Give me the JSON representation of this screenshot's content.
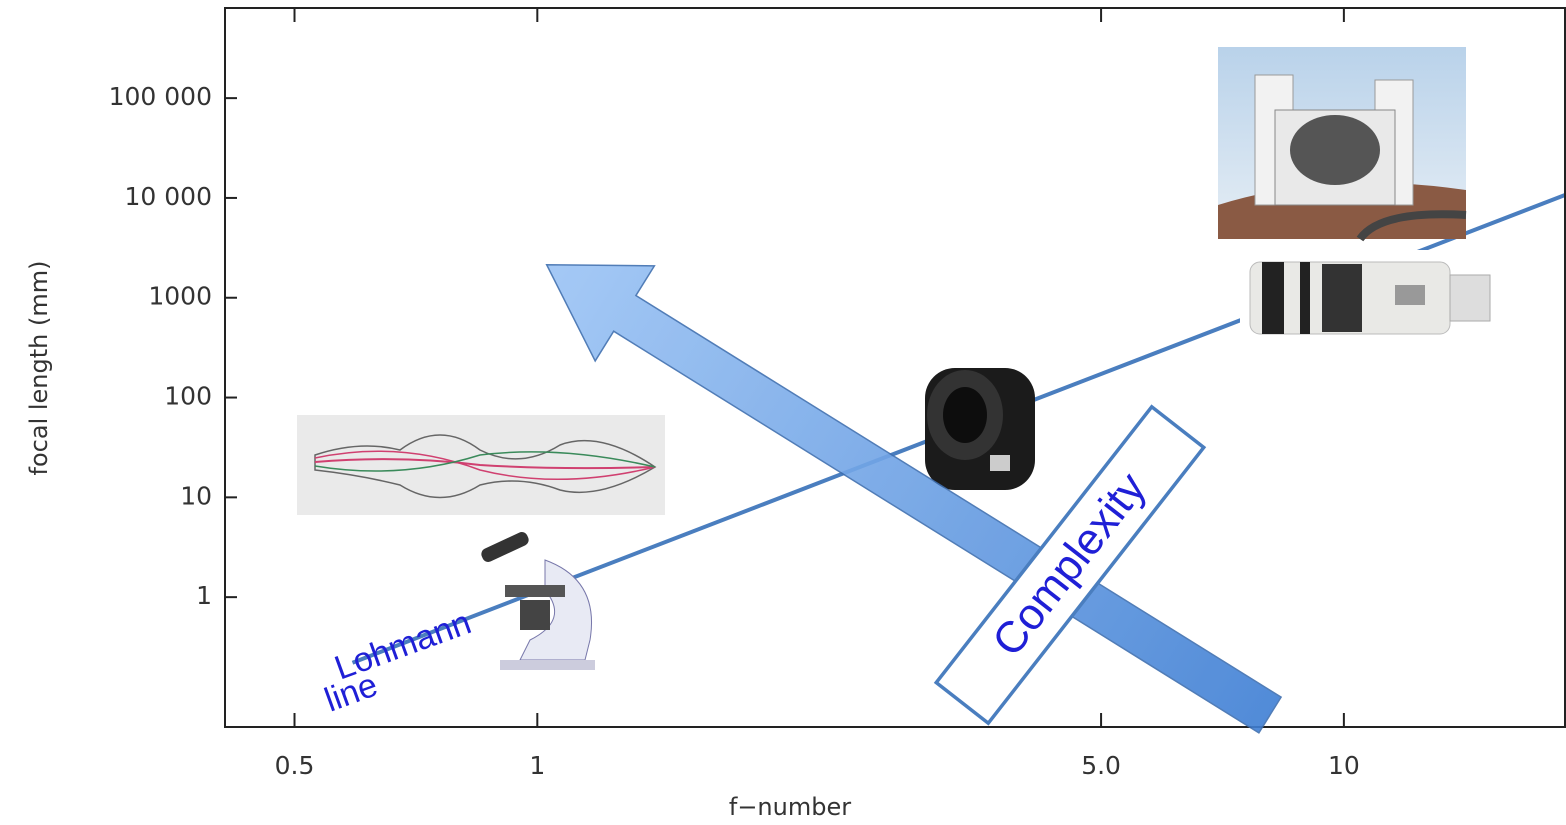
{
  "chart_data": {
    "type": "line",
    "xlabel": "f−number",
    "ylabel": "focal length (mm)",
    "log_x": true,
    "log_y": true,
    "xlim": [
      0.41,
      18.8
    ],
    "ylim": [
      0.05,
      800000
    ],
    "xticks": [
      0.5,
      1,
      {
        "value": 5,
        "label": "5.0"
      },
      10
    ],
    "yticks": [
      1,
      10,
      100,
      1000,
      {
        "value": 10000,
        "label": "10 000"
      },
      {
        "value": 100000,
        "label": "100 000"
      }
    ],
    "series": [
      {
        "color": "#4a7ebf",
        "x": [
          0.59,
          18.8
        ],
        "values": [
          0.22,
          10700
        ]
      }
    ],
    "annotations": [
      "Lohmann",
      "line",
      "Complexity"
    ]
  }
}
